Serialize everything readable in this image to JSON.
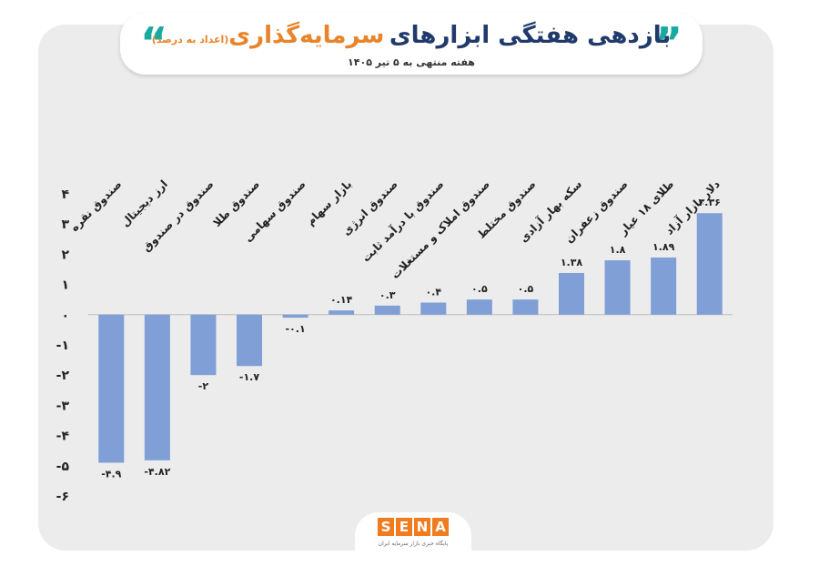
{
  "header": {
    "title_main": "بازدهی هفتگی ابزارهای",
    "title_accent": "سرمایه‌گذاری",
    "title_note": "(اعداد به درصد)",
    "subtitle": "هفته منتهی به ۵ تیر ۱۴۰۵",
    "quote_glyph_left": "“",
    "quote_glyph_right": "”"
  },
  "logo": {
    "letters": [
      "S",
      "E",
      "N",
      "A"
    ],
    "tagline": "پایگاه خبری بازار سرمایه ایران"
  },
  "colors": {
    "bar": "#7f9fd6",
    "accent": "#e8842b",
    "title": "#1f3a6b",
    "quote": "#19a9a0",
    "card": "#ececec"
  },
  "chart_data": {
    "type": "bar",
    "categories": [
      "صندوق نقره",
      "ارز دیجیتال",
      "صندوق در صندوق",
      "صندوق طلا",
      "صندوق سهامی",
      "بازار سهام",
      "صندوق انرژی",
      "صندوق با درآمد ثابت",
      "صندوق املاک و مستغلات",
      "صندوق مختلط",
      "سکه بهار آزادی",
      "صندوق زعفران",
      "طلای ۱۸ عیار",
      "دلار بازار آزاد"
    ],
    "values": [
      -4.9,
      -4.82,
      -2,
      -1.7,
      -0.1,
      0.14,
      0.3,
      0.4,
      0.5,
      0.5,
      1.38,
      1.8,
      1.89,
      3.36
    ],
    "value_labels": [
      "-۴.۹",
      "-۴.۸۲",
      "-۲",
      "-۱.۷",
      "-۰.۱",
      "۰.۱۴",
      "۰.۳",
      "۰.۴",
      "۰.۵",
      "۰.۵",
      "۱.۳۸",
      "۱.۸",
      "۱.۸۹",
      "۳.۳۶"
    ],
    "ylim": [
      -6,
      4
    ],
    "yticks": [
      4,
      3,
      2,
      1,
      0,
      -1,
      -2,
      -3,
      -4,
      -5,
      -6
    ],
    "ytick_labels": [
      "۴",
      "۳",
      "۲",
      "۱",
      "۰",
      "-۱",
      "-۲",
      "-۳",
      "-۴",
      "-۵",
      "-۶"
    ],
    "grid": false,
    "title": "بازدهی هفتگی ابزارهای سرمایه‌گذاری",
    "xlabel": "",
    "ylabel": ""
  }
}
